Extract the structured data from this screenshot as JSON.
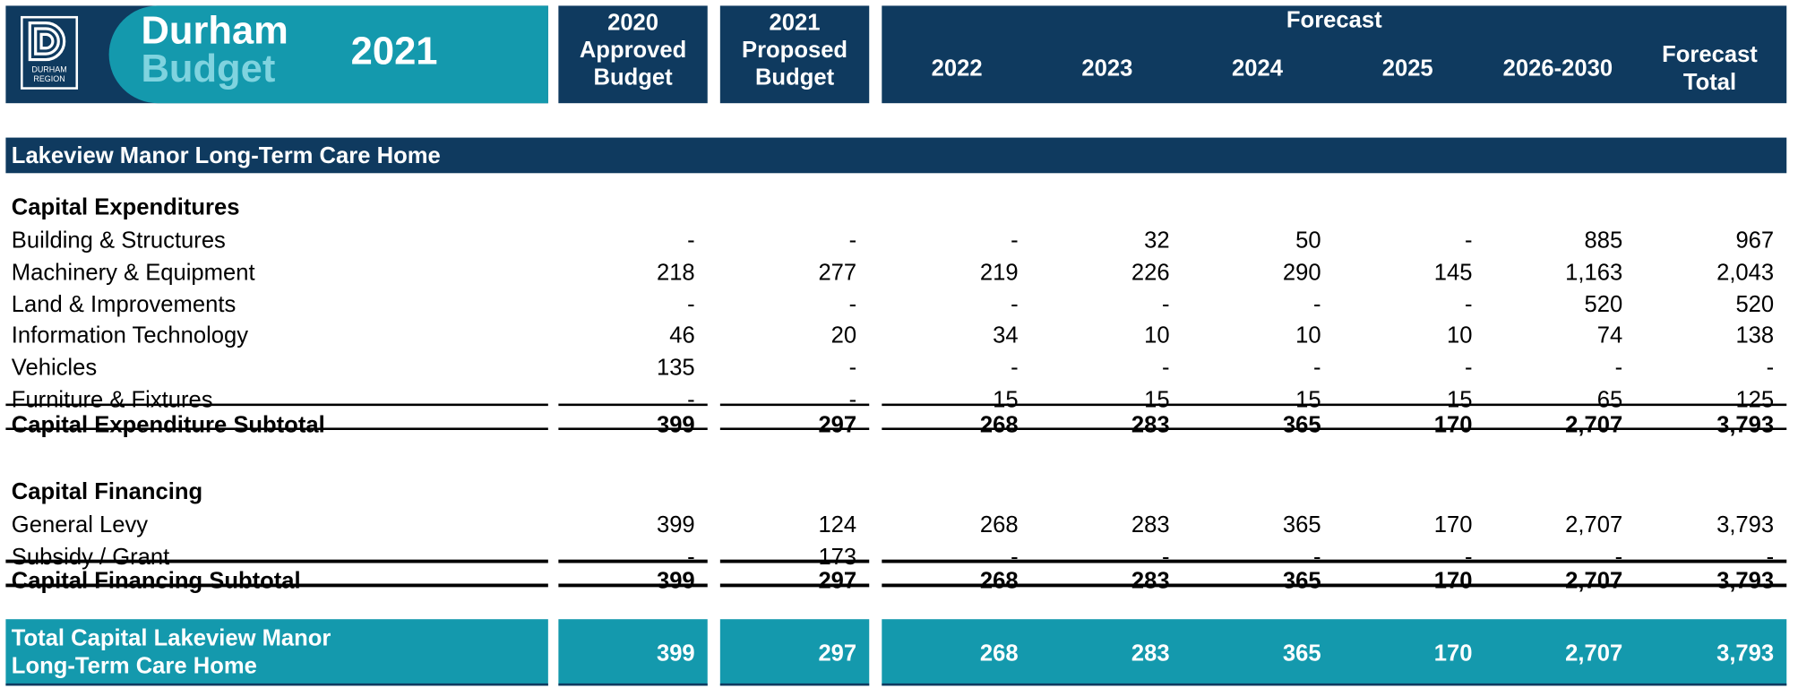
{
  "header": {
    "logo_text": "DURHAM REGION",
    "brand_line1": "Durham",
    "brand_line2": "Budget",
    "brand_year": "2021",
    "forecast_label": "Forecast",
    "columns": [
      {
        "lines": [
          "2020",
          "Approved",
          "Budget"
        ]
      },
      {
        "lines": [
          "2021",
          "Proposed",
          "Budget"
        ]
      },
      {
        "lines": [
          "2022"
        ]
      },
      {
        "lines": [
          "2023"
        ]
      },
      {
        "lines": [
          "2024"
        ]
      },
      {
        "lines": [
          "2025"
        ]
      },
      {
        "lines": [
          "2026-2030"
        ]
      },
      {
        "lines": [
          "Forecast",
          "Total"
        ]
      }
    ]
  },
  "section": "Lakeview Manor Long-Term Care Home",
  "groups": [
    {
      "title": "Capital Expenditures",
      "rows": [
        {
          "label": "Building & Structures",
          "values": [
            "-",
            "-",
            "-",
            "32",
            "50",
            "-",
            "885",
            "967"
          ]
        },
        {
          "label": "Machinery & Equipment",
          "values": [
            "218",
            "277",
            "219",
            "226",
            "290",
            "145",
            "1,163",
            "2,043"
          ]
        },
        {
          "label": "Land & Improvements",
          "values": [
            "-",
            "-",
            "-",
            "-",
            "-",
            "-",
            "520",
            "520"
          ]
        },
        {
          "label": "Information Technology",
          "values": [
            "46",
            "20",
            "34",
            "10",
            "10",
            "10",
            "74",
            "138"
          ]
        },
        {
          "label": "Vehicles",
          "values": [
            "135",
            "-",
            "-",
            "-",
            "-",
            "-",
            "-",
            "-"
          ]
        },
        {
          "label": "Furniture & Fixtures",
          "values": [
            "-",
            "-",
            "15",
            "15",
            "15",
            "15",
            "65",
            "125"
          ]
        }
      ],
      "subtotal": {
        "label": "Capital Expenditure Subtotal",
        "values": [
          "399",
          "297",
          "268",
          "283",
          "365",
          "170",
          "2,707",
          "3,793"
        ]
      }
    },
    {
      "title": "Capital Financing",
      "rows": [
        {
          "label": "General Levy",
          "values": [
            "399",
            "124",
            "268",
            "283",
            "365",
            "170",
            "2,707",
            "3,793"
          ]
        },
        {
          "label": "Subsidy / Grant",
          "values": [
            "-",
            "173",
            "-",
            "-",
            "-",
            "-",
            "-",
            "-"
          ]
        }
      ],
      "subtotal": {
        "label": "Capital Financing Subtotal",
        "values": [
          "399",
          "297",
          "268",
          "283",
          "365",
          "170",
          "2,707",
          "3,793"
        ]
      }
    }
  ],
  "total": {
    "label": "Total Capital Lakeview Manor Long-Term Care Home",
    "values": [
      "399",
      "297",
      "268",
      "283",
      "365",
      "170",
      "2,707",
      "3,793"
    ]
  }
}
